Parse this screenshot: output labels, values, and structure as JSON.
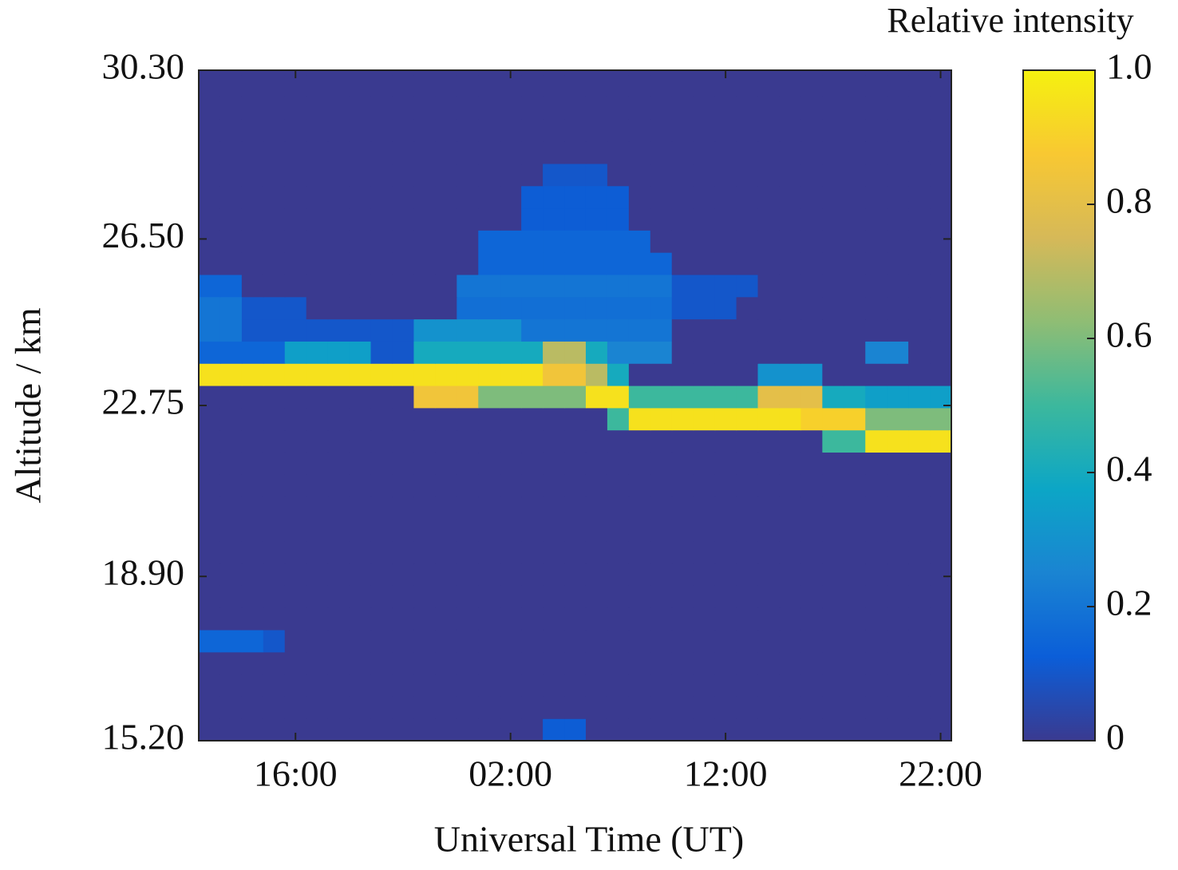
{
  "chart_data": {
    "type": "heatmap",
    "xlabel": "Universal Time (UT)",
    "ylabel": "Altitude / km",
    "categories": [
      null,
      null,
      null,
      null,
      "16:00",
      null,
      null,
      null,
      null,
      null,
      null,
      null,
      null,
      null,
      "02:00",
      null,
      null,
      null,
      null,
      null,
      null,
      null,
      null,
      null,
      "12:00",
      null,
      null,
      null,
      null,
      null,
      null,
      null,
      null,
      null,
      "22:00"
    ],
    "ybins": [
      15.2,
      15.7,
      16.2,
      16.7,
      17.2,
      17.7,
      18.2,
      18.7,
      19.2,
      19.7,
      20.2,
      20.7,
      21.2,
      21.7,
      22.2,
      22.7,
      23.2,
      23.7,
      24.2,
      24.7,
      25.2,
      25.7,
      26.2,
      26.7,
      27.2,
      27.7,
      28.2,
      28.7,
      29.2,
      29.7,
      30.2,
      30.3
    ],
    "ylim": [
      15.2,
      30.3
    ],
    "yticks": [
      {
        "value": 15.2,
        "label": "15.20"
      },
      {
        "value": 18.9,
        "label": "18.90"
      },
      22.75,
      {
        "value": 26.5,
        "label": "26.50"
      },
      {
        "value": 30.3,
        "label": "30.30"
      }
    ],
    "values": [
      [
        0,
        0,
        0,
        0,
        0,
        0,
        0,
        0,
        0,
        0,
        0,
        0,
        0,
        0,
        0,
        0,
        0.12,
        0.12,
        0,
        0,
        0,
        0,
        0,
        0,
        0,
        0,
        0,
        0,
        0,
        0,
        0,
        0,
        0,
        0,
        0
      ],
      [
        0,
        0,
        0,
        0,
        0,
        0,
        0,
        0,
        0,
        0,
        0,
        0,
        0,
        0,
        0,
        0,
        0,
        0,
        0,
        0,
        0,
        0,
        0,
        0,
        0,
        0,
        0,
        0,
        0,
        0,
        0,
        0,
        0,
        0,
        0
      ],
      [
        0,
        0,
        0,
        0,
        0,
        0,
        0,
        0,
        0,
        0,
        0,
        0,
        0,
        0,
        0,
        0,
        0,
        0,
        0,
        0,
        0,
        0,
        0,
        0,
        0,
        0,
        0,
        0,
        0,
        0,
        0,
        0,
        0,
        0,
        0
      ],
      [
        0,
        0,
        0,
        0,
        0,
        0,
        0,
        0,
        0,
        0,
        0,
        0,
        0,
        0,
        0,
        0,
        0,
        0,
        0,
        0,
        0,
        0,
        0,
        0,
        0,
        0,
        0,
        0,
        0,
        0,
        0,
        0,
        0,
        0,
        0
      ],
      [
        0.15,
        0.15,
        0.15,
        0.1,
        0,
        0,
        0,
        0,
        0,
        0,
        0,
        0,
        0,
        0,
        0,
        0,
        0,
        0,
        0,
        0,
        0,
        0,
        0,
        0,
        0,
        0,
        0,
        0,
        0,
        0,
        0,
        0,
        0,
        0,
        0
      ],
      [
        0,
        0,
        0,
        0,
        0,
        0,
        0,
        0,
        0,
        0,
        0,
        0,
        0,
        0,
        0,
        0,
        0,
        0,
        0,
        0,
        0,
        0,
        0,
        0,
        0,
        0,
        0,
        0,
        0,
        0,
        0,
        0,
        0,
        0,
        0
      ],
      [
        0,
        0,
        0,
        0,
        0,
        0,
        0,
        0,
        0,
        0,
        0,
        0,
        0,
        0,
        0,
        0,
        0,
        0,
        0,
        0,
        0,
        0,
        0,
        0,
        0,
        0,
        0,
        0,
        0,
        0,
        0,
        0,
        0,
        0,
        0
      ],
      [
        0,
        0,
        0,
        0,
        0,
        0,
        0,
        0,
        0,
        0,
        0,
        0,
        0,
        0,
        0,
        0,
        0,
        0,
        0,
        0,
        0,
        0,
        0,
        0,
        0,
        0,
        0,
        0,
        0,
        0,
        0,
        0,
        0,
        0,
        0
      ],
      [
        0,
        0,
        0,
        0,
        0,
        0,
        0,
        0,
        0,
        0,
        0,
        0,
        0,
        0,
        0,
        0,
        0,
        0,
        0,
        0,
        0,
        0,
        0,
        0,
        0,
        0,
        0,
        0,
        0,
        0,
        0,
        0,
        0,
        0,
        0
      ],
      [
        0,
        0,
        0,
        0,
        0,
        0,
        0,
        0,
        0,
        0,
        0,
        0,
        0,
        0,
        0,
        0,
        0,
        0,
        0,
        0,
        0,
        0,
        0,
        0,
        0,
        0,
        0,
        0,
        0,
        0,
        0,
        0,
        0,
        0,
        0
      ],
      [
        0,
        0,
        0,
        0,
        0,
        0,
        0,
        0,
        0,
        0,
        0,
        0,
        0,
        0,
        0,
        0,
        0,
        0,
        0,
        0,
        0,
        0,
        0,
        0,
        0,
        0,
        0,
        0,
        0,
        0,
        0,
        0,
        0,
        0,
        0
      ],
      [
        0,
        0,
        0,
        0,
        0,
        0,
        0,
        0,
        0,
        0,
        0,
        0,
        0,
        0,
        0,
        0,
        0,
        0,
        0,
        0,
        0,
        0,
        0,
        0,
        0,
        0,
        0,
        0,
        0,
        0,
        0,
        0,
        0,
        0,
        0
      ],
      [
        0,
        0,
        0,
        0,
        0,
        0,
        0,
        0,
        0,
        0,
        0,
        0,
        0,
        0,
        0,
        0,
        0,
        0,
        0,
        0,
        0,
        0,
        0,
        0,
        0,
        0,
        0,
        0,
        0,
        0,
        0,
        0,
        0,
        0,
        0
      ],
      [
        0,
        0,
        0,
        0,
        0,
        0,
        0,
        0,
        0,
        0,
        0,
        0,
        0,
        0,
        0,
        0,
        0,
        0,
        0,
        0,
        0,
        0,
        0,
        0,
        0,
        0,
        0,
        0,
        0,
        0.5,
        0.5,
        0.95,
        0.95,
        0.95,
        0.95
      ],
      [
        0,
        0,
        0,
        0,
        0,
        0,
        0,
        0,
        0,
        0,
        0,
        0,
        0,
        0,
        0,
        0,
        0,
        0,
        0,
        0.5,
        0.95,
        0.95,
        0.95,
        0.95,
        0.95,
        0.95,
        0.95,
        0.95,
        0.9,
        0.9,
        0.9,
        0.6,
        0.6,
        0.6,
        0.6
      ],
      [
        0,
        0,
        0,
        0,
        0,
        0,
        0,
        0,
        0,
        0,
        0.85,
        0.85,
        0.85,
        0.6,
        0.6,
        0.6,
        0.6,
        0.6,
        0.95,
        0.95,
        0.5,
        0.5,
        0.5,
        0.5,
        0.5,
        0.5,
        0.8,
        0.8,
        0.8,
        0.4,
        0.4,
        0.35,
        0.35,
        0.35,
        0.35
      ],
      [
        0.95,
        0.95,
        0.95,
        0.95,
        0.95,
        0.95,
        0.95,
        0.95,
        0.95,
        0.95,
        0.95,
        0.95,
        0.95,
        0.95,
        0.95,
        0.95,
        0.85,
        0.85,
        0.7,
        0.4,
        0,
        0,
        0,
        0,
        0,
        0,
        0.3,
        0.3,
        0.3,
        0,
        0,
        0,
        0,
        0,
        0
      ],
      [
        0.15,
        0.15,
        0.15,
        0.15,
        0.35,
        0.35,
        0.35,
        0.35,
        0.1,
        0.1,
        0.4,
        0.4,
        0.4,
        0.4,
        0.4,
        0.4,
        0.7,
        0.7,
        0.4,
        0.25,
        0.25,
        0.25,
        0,
        0,
        0,
        0,
        0,
        0,
        0,
        0,
        0,
        0.25,
        0.25,
        0,
        0
      ],
      [
        0.2,
        0.2,
        0.1,
        0.1,
        0.1,
        0.1,
        0.1,
        0.1,
        0.1,
        0.1,
        0.3,
        0.3,
        0.3,
        0.3,
        0.3,
        0.2,
        0.2,
        0.2,
        0.2,
        0.2,
        0.2,
        0.2,
        0,
        0,
        0,
        0,
        0,
        0,
        0,
        0,
        0,
        0,
        0,
        0,
        0
      ],
      [
        0.2,
        0.2,
        0.1,
        0.1,
        0.1,
        0,
        0,
        0,
        0,
        0,
        0,
        0,
        0.18,
        0.18,
        0.18,
        0.18,
        0.18,
        0.18,
        0.18,
        0.18,
        0.18,
        0.18,
        0.1,
        0.1,
        0.1,
        0,
        0,
        0,
        0,
        0,
        0,
        0,
        0,
        0,
        0
      ],
      [
        0.15,
        0.15,
        0,
        0,
        0,
        0,
        0,
        0,
        0,
        0,
        0,
        0,
        0.2,
        0.2,
        0.2,
        0.2,
        0.2,
        0.2,
        0.2,
        0.2,
        0.2,
        0.2,
        0.1,
        0.1,
        0.1,
        0.1,
        0,
        0,
        0,
        0,
        0,
        0,
        0,
        0,
        0
      ],
      [
        0,
        0,
        0,
        0,
        0,
        0,
        0,
        0,
        0,
        0,
        0,
        0,
        0,
        0.15,
        0.15,
        0.15,
        0.15,
        0.15,
        0.15,
        0.15,
        0.15,
        0.15,
        0,
        0,
        0,
        0,
        0,
        0,
        0,
        0,
        0,
        0,
        0,
        0,
        0
      ],
      [
        0,
        0,
        0,
        0,
        0,
        0,
        0,
        0,
        0,
        0,
        0,
        0,
        0,
        0.15,
        0.15,
        0.15,
        0.15,
        0.15,
        0.15,
        0.15,
        0.15,
        0,
        0,
        0,
        0,
        0,
        0,
        0,
        0,
        0,
        0,
        0,
        0,
        0,
        0
      ],
      [
        0,
        0,
        0,
        0,
        0,
        0,
        0,
        0,
        0,
        0,
        0,
        0,
        0,
        0,
        0,
        0.12,
        0.12,
        0.12,
        0.12,
        0.12,
        0,
        0,
        0,
        0,
        0,
        0,
        0,
        0,
        0,
        0,
        0,
        0,
        0,
        0,
        0
      ],
      [
        0,
        0,
        0,
        0,
        0,
        0,
        0,
        0,
        0,
        0,
        0,
        0,
        0,
        0,
        0,
        0.12,
        0.12,
        0.12,
        0.12,
        0.12,
        0,
        0,
        0,
        0,
        0,
        0,
        0,
        0,
        0,
        0,
        0,
        0,
        0,
        0,
        0
      ],
      [
        0,
        0,
        0,
        0,
        0,
        0,
        0,
        0,
        0,
        0,
        0,
        0,
        0,
        0,
        0,
        0,
        0.1,
        0.1,
        0.1,
        0,
        0,
        0,
        0,
        0,
        0,
        0,
        0,
        0,
        0,
        0,
        0,
        0,
        0,
        0,
        0
      ],
      [
        0,
        0,
        0,
        0,
        0,
        0,
        0,
        0,
        0,
        0,
        0,
        0,
        0,
        0,
        0,
        0,
        0,
        0,
        0,
        0,
        0,
        0,
        0,
        0,
        0,
        0,
        0,
        0,
        0,
        0,
        0,
        0,
        0,
        0,
        0
      ],
      [
        0,
        0,
        0,
        0,
        0,
        0,
        0,
        0,
        0,
        0,
        0,
        0,
        0,
        0,
        0,
        0,
        0,
        0,
        0,
        0,
        0,
        0,
        0,
        0,
        0,
        0,
        0,
        0,
        0,
        0,
        0,
        0,
        0,
        0,
        0
      ],
      [
        0,
        0,
        0,
        0,
        0,
        0,
        0,
        0,
        0,
        0,
        0,
        0,
        0,
        0,
        0,
        0,
        0,
        0,
        0,
        0,
        0,
        0,
        0,
        0,
        0,
        0,
        0,
        0,
        0,
        0,
        0,
        0,
        0,
        0,
        0
      ],
      [
        0,
        0,
        0,
        0,
        0,
        0,
        0,
        0,
        0,
        0,
        0,
        0,
        0,
        0,
        0,
        0,
        0,
        0,
        0,
        0,
        0,
        0,
        0,
        0,
        0,
        0,
        0,
        0,
        0,
        0,
        0,
        0,
        0,
        0,
        0
      ],
      [
        0,
        0,
        0,
        0,
        0,
        0,
        0,
        0,
        0,
        0,
        0,
        0,
        0,
        0,
        0,
        0,
        0,
        0,
        0,
        0,
        0,
        0,
        0,
        0,
        0,
        0,
        0,
        0,
        0,
        0,
        0,
        0,
        0,
        0,
        0
      ]
    ],
    "colorbar": {
      "label": "Relative intensity",
      "lim": [
        0,
        1
      ],
      "ticks": [
        0,
        0.2,
        0.4,
        0.6,
        0.8,
        {
          "value": 1,
          "label": "1.0"
        }
      ],
      "colormap": [
        "#3a3a90",
        "#0b5ed8",
        "#1a84d2",
        "#0ca6c6",
        "#3cb89d",
        "#8fbd74",
        "#d6b958",
        "#f8c832",
        "#f5f10f"
      ]
    }
  }
}
